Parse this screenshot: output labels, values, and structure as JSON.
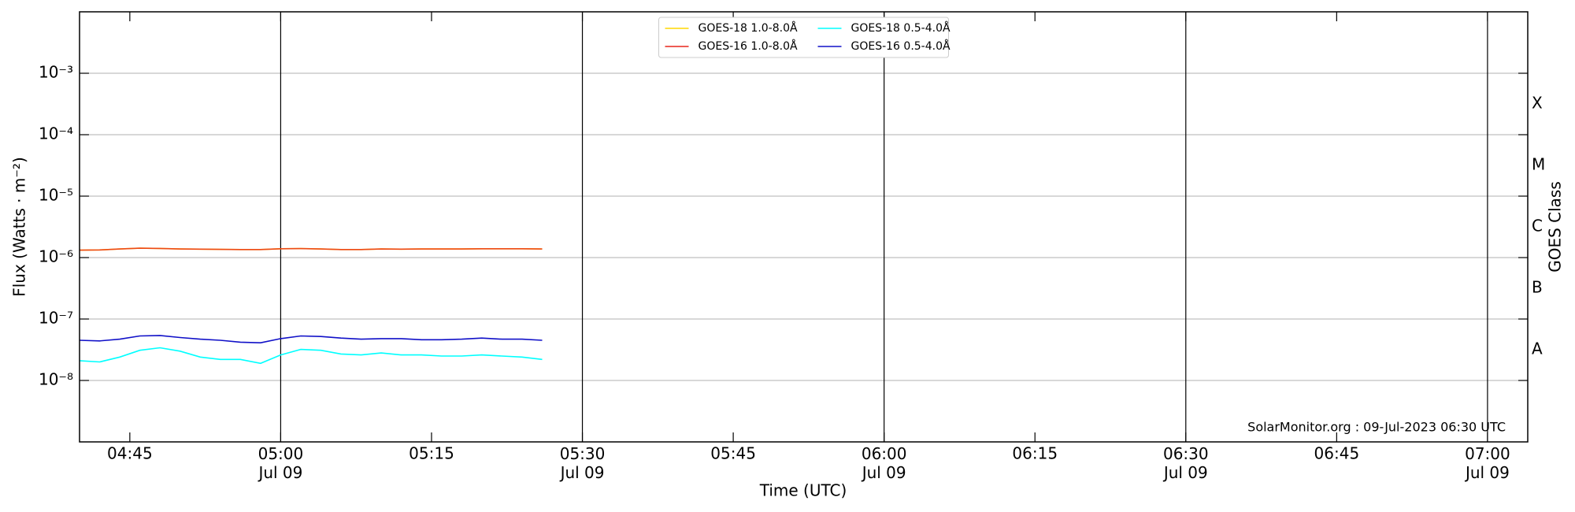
{
  "chart_data": {
    "type": "line",
    "xlabel": "Time (UTC)",
    "ylabel": "Flux (Watts · m⁻²)",
    "y2label": "GOES Class",
    "annotation": "SolarMonitor.org : 09-Jul-2023 06:30 UTC",
    "log_y": true,
    "grid": true,
    "legend": "upper center",
    "x": [
      "Jul 09 04:40",
      "Jul 09 04:42",
      "Jul 09 04:44",
      "Jul 09 04:46",
      "Jul 09 04:48",
      "Jul 09 04:50",
      "Jul 09 04:52",
      "Jul 09 04:54",
      "Jul 09 04:56",
      "Jul 09 04:58",
      "Jul 09 05:00",
      "Jul 09 05:02",
      "Jul 09 05:04",
      "Jul 09 05:06",
      "Jul 09 05:08",
      "Jul 09 05:10",
      "Jul 09 05:12",
      "Jul 09 05:14",
      "Jul 09 05:16",
      "Jul 09 05:18",
      "Jul 09 05:20",
      "Jul 09 05:22",
      "Jul 09 05:24",
      "Jul 09 05:26"
    ],
    "series": [
      {
        "name": "GOES-18 1.0-8.0Å",
        "color": "#ffd700",
        "values": [
          1.32e-06,
          1.33e-06,
          1.38e-06,
          1.42e-06,
          1.41e-06,
          1.38e-06,
          1.37e-06,
          1.36e-06,
          1.35e-06,
          1.35e-06,
          1.39e-06,
          1.4e-06,
          1.38e-06,
          1.35e-06,
          1.35e-06,
          1.38e-06,
          1.37e-06,
          1.38e-06,
          1.38e-06,
          1.38e-06,
          1.39e-06,
          1.39e-06,
          1.39e-06,
          1.38e-06
        ]
      },
      {
        "name": "GOES-16 1.0-8.0Å",
        "color": "#e8261a",
        "values": [
          1.32e-06,
          1.33e-06,
          1.38e-06,
          1.42e-06,
          1.41e-06,
          1.38e-06,
          1.37e-06,
          1.36e-06,
          1.35e-06,
          1.35e-06,
          1.39e-06,
          1.4e-06,
          1.38e-06,
          1.35e-06,
          1.35e-06,
          1.38e-06,
          1.37e-06,
          1.38e-06,
          1.38e-06,
          1.38e-06,
          1.39e-06,
          1.39e-06,
          1.39e-06,
          1.38e-06
        ]
      },
      {
        "name": "GOES-18 0.5-4.0Å",
        "color": "#00ffff",
        "values": [
          2.1e-08,
          2e-08,
          2.4e-08,
          3.1e-08,
          3.4e-08,
          3e-08,
          2.4e-08,
          2.2e-08,
          2.2e-08,
          1.9e-08,
          2.6e-08,
          3.2e-08,
          3.1e-08,
          2.7e-08,
          2.6e-08,
          2.8e-08,
          2.6e-08,
          2.6e-08,
          2.5e-08,
          2.5e-08,
          2.6e-08,
          2.5e-08,
          2.4e-08,
          2.2e-08
        ]
      },
      {
        "name": "GOES-16 0.5-4.0Å",
        "color": "#1010c8",
        "values": [
          4.5e-08,
          4.4e-08,
          4.7e-08,
          5.3e-08,
          5.4e-08,
          5e-08,
          4.7e-08,
          4.5e-08,
          4.2e-08,
          4.1e-08,
          4.8e-08,
          5.3e-08,
          5.2e-08,
          4.9e-08,
          4.7e-08,
          4.8e-08,
          4.8e-08,
          4.6e-08,
          4.6e-08,
          4.7e-08,
          4.9e-08,
          4.7e-08,
          4.7e-08,
          4.5e-08
        ]
      }
    ],
    "xlim": [
      "Jul 09 04:40",
      "Jul 09 07:04"
    ],
    "xticks": [
      {
        "value": "Jul 09 04:45",
        "label": "04:45"
      },
      {
        "value": "Jul 09 05:00",
        "label": "05:00\nJul 09"
      },
      {
        "value": "Jul 09 05:15",
        "label": "05:15"
      },
      {
        "value": "Jul 09 05:30",
        "label": "05:30\nJul 09"
      },
      {
        "value": "Jul 09 05:45",
        "label": "05:45"
      },
      {
        "value": "Jul 09 06:00",
        "label": "06:00\nJul 09"
      },
      {
        "value": "Jul 09 06:15",
        "label": "06:15"
      },
      {
        "value": "Jul 09 06:30",
        "label": "06:30\nJul 09"
      },
      {
        "value": "Jul 09 06:45",
        "label": "06:45"
      },
      {
        "value": "Jul 09 07:00",
        "label": "07:00\nJul 09"
      }
    ],
    "ylim": [
      1e-09,
      0.01
    ],
    "yticks": [
      {
        "value": 1e-08,
        "label": "10⁻⁸"
      },
      {
        "value": 1e-07,
        "label": "10⁻⁷"
      },
      {
        "value": 1e-06,
        "label": "10⁻⁶"
      },
      {
        "value": 1e-05,
        "label": "10⁻⁵"
      },
      {
        "value": 0.0001,
        "label": "10⁻⁴"
      },
      {
        "value": 0.001,
        "label": "10⁻³"
      }
    ],
    "y2lim": [
      1e-09,
      0.01
    ],
    "y2ticks": [
      {
        "value": 3.16e-08,
        "label": "A"
      },
      {
        "value": 3.16e-07,
        "label": "B"
      },
      {
        "value": 3.16e-06,
        "label": "C"
      },
      {
        "value": 3.16e-05,
        "label": "M"
      },
      {
        "value": 0.000316,
        "label": "X"
      }
    ]
  }
}
